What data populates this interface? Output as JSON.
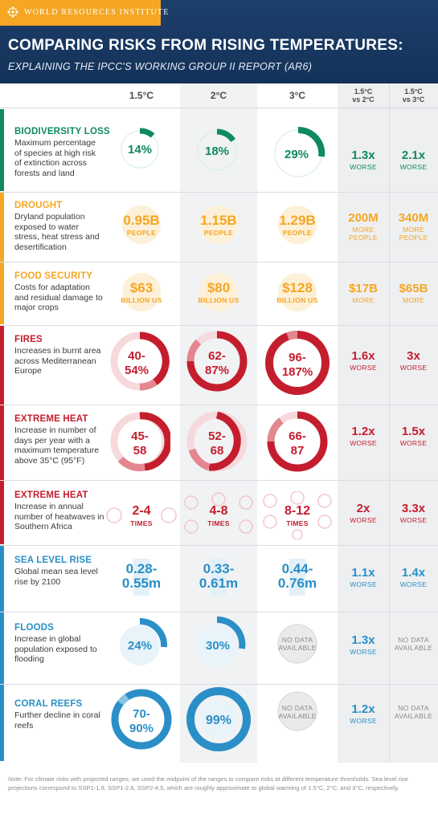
{
  "header": {
    "org": "WORLD RESOURCES INSTITUTE",
    "title": "COMPARING RISKS FROM RISING TEMPERATURES:",
    "subtitle": "EXPLAINING THE IPCC'S WORKING GROUP II REPORT (AR6)"
  },
  "columns": {
    "c15": "1.5°C",
    "c2": "2°C",
    "c3": "3°C",
    "d1": "1.5°C",
    "d1b": "vs 2°C",
    "d2": "1.5°C",
    "d2b": "vs 3°C"
  },
  "colors": {
    "green": "#0f8a5f",
    "orange": "#f5a623",
    "red": "#c41e2e",
    "blue": "#2a8fc6",
    "navy": "#1d3f6c"
  },
  "rows": [
    {
      "title": "BIODIVERSITY LOSS",
      "desc": "Maximum percentage of species at high risk of extinction across forests and land",
      "v1": "14%",
      "v2": "18%",
      "v3": "29%",
      "cmp1": "1.3x",
      "cmp1u": "WORSE",
      "cmp2": "2.1x",
      "cmp2u": "WORSE",
      "icon": "lion-icon"
    },
    {
      "title": "DROUGHT",
      "desc": "Dryland population exposed to water stress, heat stress and desertification",
      "v1": "0.95B",
      "v2": "1.15B",
      "v3": "1.29B",
      "unit": "PEOPLE",
      "cmp1": "200M",
      "cmp1u": "MORE PEOPLE",
      "cmp2": "340M",
      "cmp2u": "MORE PEOPLE"
    },
    {
      "title": "FOOD SECURITY",
      "desc": "Costs for adaptation and residual damage to major crops",
      "v1": "$63",
      "v2": "$80",
      "v3": "$128",
      "unit": "BILLION US",
      "cmp1": "$17B",
      "cmp1u": "MORE",
      "cmp2": "$65B",
      "cmp2u": "MORE"
    },
    {
      "title": "FIRES",
      "desc": "Increases in burnt area across Mediterranean Europe",
      "v1a": "40-",
      "v1b": "54%",
      "v2a": "62-",
      "v2b": "87%",
      "v3a": "96-",
      "v3b": "187%",
      "cmp1": "1.6x",
      "cmp1u": "WORSE",
      "cmp2": "3x",
      "cmp2u": "WORSE"
    },
    {
      "title": "EXTREME HEAT",
      "desc": "Increase in number of days per year with a maximum temperature above 35°C (95°F)",
      "v1a": "45-",
      "v1b": "58",
      "v2a": "52-",
      "v2b": "68",
      "v3a": "66-",
      "v3b": "87",
      "cmp1": "1.2x",
      "cmp1u": "WORSE",
      "cmp2": "1.5x",
      "cmp2u": "WORSE"
    },
    {
      "title": "EXTREME HEAT",
      "desc": "Increase in annual number of heatwaves in Southern Africa",
      "v1": "2-4",
      "v2": "4-8",
      "v3": "8-12",
      "unit": "TIMES",
      "cmp1": "2x",
      "cmp1u": "WORSE",
      "cmp2": "3.3x",
      "cmp2u": "WORSE"
    },
    {
      "title": "SEA LEVEL RISE",
      "desc": "Global mean sea level rise by 2100",
      "v1a": "0.28-",
      "v1b": "0.55m",
      "v2a": "0.33-",
      "v2b": "0.61m",
      "v3a": "0.44-",
      "v3b": "0.76m",
      "cmp1": "1.1x",
      "cmp1u": "WORSE",
      "cmp2": "1.4x",
      "cmp2u": "WORSE"
    },
    {
      "title": "FLOODS",
      "desc": "Increase in global population exposed to flooding",
      "v1": "24%",
      "v2": "30%",
      "v3a": "NO DATA",
      "v3b": "AVAILABLE",
      "cmp1": "1.3x",
      "cmp1u": "WORSE",
      "cmp2a": "NO DATA",
      "cmp2b": "AVAILABLE"
    },
    {
      "title": "CORAL REEFS",
      "desc": "Further decline in coral reefs",
      "v1a": "70-",
      "v1b": "90%",
      "v2": "99%",
      "v3a": "NO DATA",
      "v3b": "AVAILABLE",
      "cmp1": "1.2x",
      "cmp1u": "WORSE",
      "cmp2a": "NO DATA",
      "cmp2b": "AVAILABLE"
    }
  ],
  "note_label": "Note:",
  "note": "For climate risks with projected ranges, we used the midpoint of the ranges to compare risks at different temperature thresholds. Sea level rise projections correspond to SSP1-1.9, SSP1-2.6, SSP2-4.5, which are roughly approximate to global warming of 1.5°C, 2°C, and 3°C, respectively."
}
